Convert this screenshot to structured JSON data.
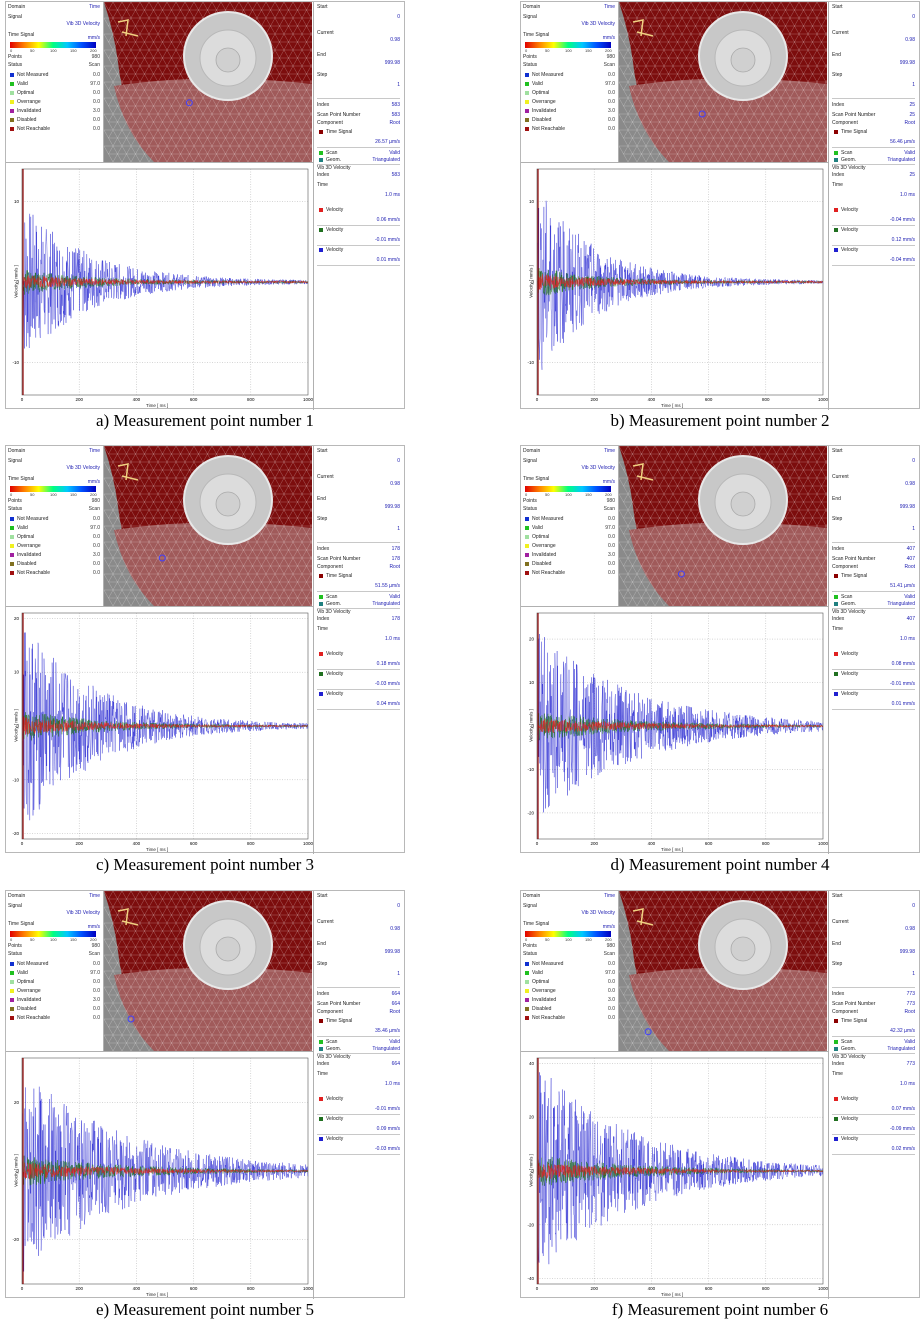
{
  "window": {
    "domain_label": "Domain",
    "domain_value": "Time",
    "signal_label": "Signal",
    "signal_value": "Vib 3D Velocity",
    "time_signal_label": "Time Signal",
    "unit": "mm/s",
    "colorbar_ticks": [
      "0",
      "50",
      "100",
      "150",
      "200"
    ],
    "points_label": "Points",
    "points_value": "980",
    "status_label": "Status",
    "status_value": "Scan",
    "status_items": [
      {
        "label": "Not Measured",
        "value": "0.0",
        "color": "#1030d0"
      },
      {
        "label": "Valid",
        "value": "97.0",
        "color": "#20c020"
      },
      {
        "label": "Optimal",
        "value": "0.0",
        "color": "#a0e0a0"
      },
      {
        "label": "Overrange",
        "value": "0.0",
        "color": "#f0f020"
      },
      {
        "label": "Invalidated",
        "value": "3.0",
        "color": "#a020a0"
      },
      {
        "label": "Disabled",
        "value": "0.0",
        "color": "#807020"
      },
      {
        "label": "Not Reachable",
        "value": "0.0",
        "color": "#a01010"
      }
    ],
    "start_label": "Start",
    "start_value": "0",
    "start_unit": "ms",
    "current_label": "Current",
    "current_value": "0.98",
    "current_unit": "ms",
    "end_label": "End",
    "end_value": "999.98",
    "end_unit": "ms",
    "step_label": "Step",
    "step_value": "1",
    "index_label": "Index",
    "scan_point_label": "Scan Point Number",
    "component_label": "Component",
    "component_value": "Root",
    "time_signal_item": "Time Signal",
    "scan_label": "Scan",
    "scan_value": "Valid",
    "geom_label": "Geom.",
    "geom_value": "Triangulated",
    "vib_header": "Vib 3D Velocity",
    "time_label": "Time",
    "time_value": "1.0 ms",
    "velocity_label": "Velocity",
    "y_axis_label": "Velocity [ mm/s ]",
    "x_axis_label": "Time [ ms ]",
    "x_ticks": [
      "0",
      "200",
      "400",
      "600",
      "800",
      "1000"
    ]
  },
  "panels": [
    {
      "caption": "a) Measurement point number 1",
      "index": "583",
      "scan_point": "583",
      "time_signal_value": "26.57 µm/s",
      "vel_x": "0.06 mm/s",
      "vel_y": "-0.01 mm/s",
      "vel_z": "0.01 mm/s",
      "y_ticks": [
        "10",
        "0",
        "-10"
      ],
      "ymax": 14,
      "amp": 10,
      "decay": 4.5,
      "marker": [
        0.41,
        0.63
      ]
    },
    {
      "caption": "b) Measurement point number 2",
      "index": "25",
      "scan_point": "25",
      "time_signal_value": "56.46 µm/s",
      "vel_x": "-0.04 mm/s",
      "vel_y": "0.12 mm/s",
      "vel_z": "-0.04 mm/s",
      "y_ticks": [
        "10",
        "0",
        "-10"
      ],
      "ymax": 14,
      "amp": 12,
      "decay": 5,
      "marker": [
        0.4,
        0.7
      ]
    },
    {
      "caption": "c) Measurement point number 3",
      "index": "178",
      "scan_point": "178",
      "time_signal_value": "51.55 µm/s",
      "vel_x": "0.18 mm/s",
      "vel_y": "-0.03 mm/s",
      "vel_z": "0.04 mm/s",
      "y_ticks": [
        "20",
        "10",
        "0",
        "-10",
        "-20"
      ],
      "ymax": 21,
      "amp": 20,
      "decay": 4,
      "marker": [
        0.28,
        0.7
      ]
    },
    {
      "caption": "d) Measurement point number 4",
      "index": "407",
      "scan_point": "407",
      "time_signal_value": "51.41 µm/s",
      "vel_x": "0.08 mm/s",
      "vel_y": "-0.01 mm/s",
      "vel_z": "0.01 mm/s",
      "y_ticks": [
        "20",
        "10",
        "0",
        "-10",
        "-20"
      ],
      "ymax": 26,
      "amp": 22,
      "decay": 3,
      "marker": [
        0.3,
        0.8
      ]
    },
    {
      "caption": "e) Measurement point number 5",
      "index": "664",
      "scan_point": "664",
      "time_signal_value": "35.46 µm/s",
      "vel_x": "-0.01 mm/s",
      "vel_y": "0.09 mm/s",
      "vel_z": "-0.03 mm/s",
      "y_ticks": [
        "20",
        "0",
        "-20"
      ],
      "ymax": 33,
      "amp": 30,
      "decay": 2.8,
      "marker": [
        0.13,
        0.8
      ]
    },
    {
      "caption": "f) Measurement point number 6",
      "index": "773",
      "scan_point": "773",
      "time_signal_value": "42.32 µm/s",
      "vel_x": "0.07 mm/s",
      "vel_y": "-0.09 mm/s",
      "vel_z": "0.02 mm/s",
      "y_ticks": [
        "40",
        "20",
        "0",
        "-20",
        "-40"
      ],
      "ymax": 42,
      "amp": 40,
      "decay": 3,
      "marker": [
        0.14,
        0.88
      ]
    }
  ]
}
